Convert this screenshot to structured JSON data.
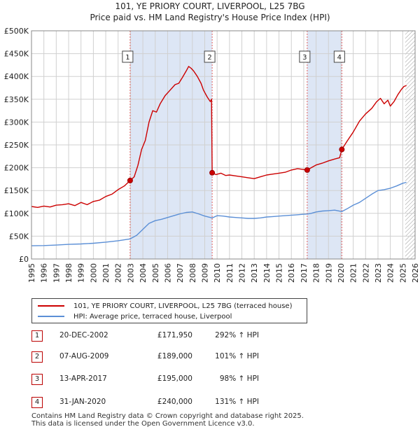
{
  "title_line1": "101, YE PRIORY COURT, LIVERPOOL, L25 7BG",
  "title_line2": "Price paid vs. HM Land Registry's House Price Index (HPI)",
  "legend": {
    "property_label": "101, YE PRIORY COURT, LIVERPOOL, L25 7BG (terraced house)",
    "hpi_label": "HPI: Average price, terraced house, Liverpool"
  },
  "colors": {
    "property": "#cc0000",
    "hpi": "#5b8fd6",
    "band": "#dde6f5",
    "grid": "#d0d0d0",
    "vline": "#e06060"
  },
  "sales_table": [
    {
      "num": "1",
      "date": "20-DEC-2002",
      "price": "£171,950",
      "hpi": "292% ↑ HPI"
    },
    {
      "num": "2",
      "date": "07-AUG-2009",
      "price": "£189,000",
      "hpi": "101% ↑ HPI"
    },
    {
      "num": "3",
      "date": "13-APR-2017",
      "price": "£195,000",
      "hpi": "98% ↑ HPI"
    },
    {
      "num": "4",
      "date": "31-JAN-2020",
      "price": "£240,000",
      "hpi": "131% ↑ HPI"
    }
  ],
  "footer_line1": "Contains HM Land Registry data © Crown copyright and database right 2025.",
  "footer_line2": "This data is licensed under the Open Government Licence v3.0.",
  "chart_data": {
    "type": "line",
    "title": "Price paid vs. HM Land Registry's House Price Index (HPI)",
    "xlabel": "",
    "ylabel": "",
    "xlim": [
      1995,
      2026
    ],
    "ylim": [
      0,
      500000
    ],
    "x_ticks": [
      1995,
      1996,
      1997,
      1998,
      1999,
      2000,
      2001,
      2002,
      2003,
      2004,
      2005,
      2006,
      2007,
      2008,
      2009,
      2010,
      2011,
      2012,
      2013,
      2014,
      2015,
      2016,
      2017,
      2018,
      2019,
      2020,
      2021,
      2022,
      2023,
      2024,
      2025,
      2026
    ],
    "y_ticks": [
      {
        "value": 0,
        "label": "£0"
      },
      {
        "value": 50000,
        "label": "£50K"
      },
      {
        "value": 100000,
        "label": "£100K"
      },
      {
        "value": 150000,
        "label": "£150K"
      },
      {
        "value": 200000,
        "label": "£200K"
      },
      {
        "value": 250000,
        "label": "£250K"
      },
      {
        "value": 300000,
        "label": "£300K"
      },
      {
        "value": 350000,
        "label": "£350K"
      },
      {
        "value": 400000,
        "label": "£400K"
      },
      {
        "value": 450000,
        "label": "£450K"
      },
      {
        "value": 500000,
        "label": "£500K"
      }
    ],
    "grid": true,
    "hatched_future_from": 2025.2,
    "highlight_bands": [
      [
        2002.97,
        2009.6
      ],
      [
        2017.28,
        2020.08
      ]
    ],
    "series": [
      {
        "name": "101, YE PRIORY COURT, LIVERPOOL, L25 7BG (terraced house)",
        "color": "#cc0000",
        "points": [
          [
            1995.0,
            115000
          ],
          [
            1995.5,
            113000
          ],
          [
            1996.0,
            116000
          ],
          [
            1996.5,
            114000
          ],
          [
            1997.0,
            118000
          ],
          [
            1997.5,
            119000
          ],
          [
            1998.0,
            121000
          ],
          [
            1998.5,
            117000
          ],
          [
            1999.0,
            124000
          ],
          [
            1999.5,
            119000
          ],
          [
            2000.0,
            126000
          ],
          [
            2000.5,
            129000
          ],
          [
            2001.0,
            137000
          ],
          [
            2001.5,
            142000
          ],
          [
            2002.0,
            152000
          ],
          [
            2002.5,
            160000
          ],
          [
            2002.97,
            171950
          ],
          [
            2003.3,
            180000
          ],
          [
            2003.6,
            205000
          ],
          [
            2003.9,
            240000
          ],
          [
            2004.2,
            260000
          ],
          [
            2004.5,
            300000
          ],
          [
            2004.8,
            325000
          ],
          [
            2005.1,
            322000
          ],
          [
            2005.4,
            340000
          ],
          [
            2005.8,
            358000
          ],
          [
            2006.2,
            370000
          ],
          [
            2006.6,
            382000
          ],
          [
            2006.9,
            385000
          ],
          [
            2007.2,
            398000
          ],
          [
            2007.5,
            412000
          ],
          [
            2007.7,
            422000
          ],
          [
            2007.9,
            418000
          ],
          [
            2008.1,
            412000
          ],
          [
            2008.4,
            400000
          ],
          [
            2008.7,
            385000
          ],
          [
            2008.9,
            370000
          ],
          [
            2009.2,
            355000
          ],
          [
            2009.45,
            345000
          ],
          [
            2009.55,
            350000
          ],
          [
            2009.6,
            189000
          ],
          [
            2009.9,
            185000
          ],
          [
            2010.3,
            188000
          ],
          [
            2010.7,
            183000
          ],
          [
            2011.0,
            184000
          ],
          [
            2011.5,
            182000
          ],
          [
            2012.0,
            180000
          ],
          [
            2012.5,
            178000
          ],
          [
            2013.0,
            176000
          ],
          [
            2013.5,
            180000
          ],
          [
            2014.0,
            184000
          ],
          [
            2014.5,
            186000
          ],
          [
            2015.0,
            188000
          ],
          [
            2015.5,
            190000
          ],
          [
            2016.0,
            195000
          ],
          [
            2016.5,
            198000
          ],
          [
            2017.0,
            196000
          ],
          [
            2017.28,
            195000
          ],
          [
            2017.6,
            200000
          ],
          [
            2018.0,
            206000
          ],
          [
            2018.5,
            210000
          ],
          [
            2019.0,
            215000
          ],
          [
            2019.5,
            219000
          ],
          [
            2019.9,
            222000
          ],
          [
            2020.08,
            240000
          ],
          [
            2020.5,
            258000
          ],
          [
            2021.0,
            278000
          ],
          [
            2021.5,
            302000
          ],
          [
            2022.0,
            318000
          ],
          [
            2022.5,
            330000
          ],
          [
            2022.9,
            345000
          ],
          [
            2023.2,
            352000
          ],
          [
            2023.5,
            340000
          ],
          [
            2023.8,
            348000
          ],
          [
            2024.0,
            335000
          ],
          [
            2024.3,
            345000
          ],
          [
            2024.6,
            360000
          ],
          [
            2024.9,
            372000
          ],
          [
            2025.1,
            378000
          ],
          [
            2025.3,
            380000
          ]
        ]
      },
      {
        "name": "HPI: Average price, terraced house, Liverpool",
        "color": "#5b8fd6",
        "points": [
          [
            1995.0,
            29000
          ],
          [
            1996.0,
            29500
          ],
          [
            1997.0,
            30500
          ],
          [
            1998.0,
            32000
          ],
          [
            1999.0,
            33000
          ],
          [
            2000.0,
            34500
          ],
          [
            2001.0,
            37000
          ],
          [
            2002.0,
            40000
          ],
          [
            2002.97,
            44000
          ],
          [
            2003.5,
            52000
          ],
          [
            2004.0,
            65000
          ],
          [
            2004.5,
            78000
          ],
          [
            2005.0,
            84000
          ],
          [
            2005.5,
            87000
          ],
          [
            2006.0,
            91000
          ],
          [
            2006.5,
            95000
          ],
          [
            2007.0,
            99000
          ],
          [
            2007.5,
            102000
          ],
          [
            2008.0,
            103000
          ],
          [
            2008.5,
            99000
          ],
          [
            2009.0,
            94000
          ],
          [
            2009.6,
            90000
          ],
          [
            2010.0,
            95000
          ],
          [
            2010.5,
            94000
          ],
          [
            2011.0,
            92000
          ],
          [
            2011.5,
            91000
          ],
          [
            2012.0,
            90000
          ],
          [
            2012.5,
            89000
          ],
          [
            2013.0,
            89000
          ],
          [
            2013.5,
            90000
          ],
          [
            2014.0,
            92000
          ],
          [
            2014.5,
            93000
          ],
          [
            2015.0,
            94000
          ],
          [
            2015.5,
            95000
          ],
          [
            2016.0,
            96000
          ],
          [
            2016.5,
            97000
          ],
          [
            2017.0,
            98000
          ],
          [
            2017.28,
            98500
          ],
          [
            2017.6,
            100000
          ],
          [
            2018.0,
            103000
          ],
          [
            2018.5,
            105000
          ],
          [
            2019.0,
            106000
          ],
          [
            2019.5,
            107000
          ],
          [
            2020.08,
            104000
          ],
          [
            2020.5,
            110000
          ],
          [
            2021.0,
            118000
          ],
          [
            2021.5,
            124000
          ],
          [
            2022.0,
            133000
          ],
          [
            2022.5,
            142000
          ],
          [
            2023.0,
            150000
          ],
          [
            2023.5,
            152000
          ],
          [
            2024.0,
            155000
          ],
          [
            2024.5,
            160000
          ],
          [
            2025.0,
            166000
          ],
          [
            2025.3,
            168000
          ]
        ]
      }
    ],
    "sale_markers": [
      {
        "label": "1",
        "x": 2002.97,
        "value": 171950
      },
      {
        "label": "2",
        "x": 2009.6,
        "value": 189000
      },
      {
        "label": "3",
        "x": 2017.28,
        "value": 195000
      },
      {
        "label": "4",
        "x": 2020.08,
        "value": 240000
      }
    ]
  }
}
